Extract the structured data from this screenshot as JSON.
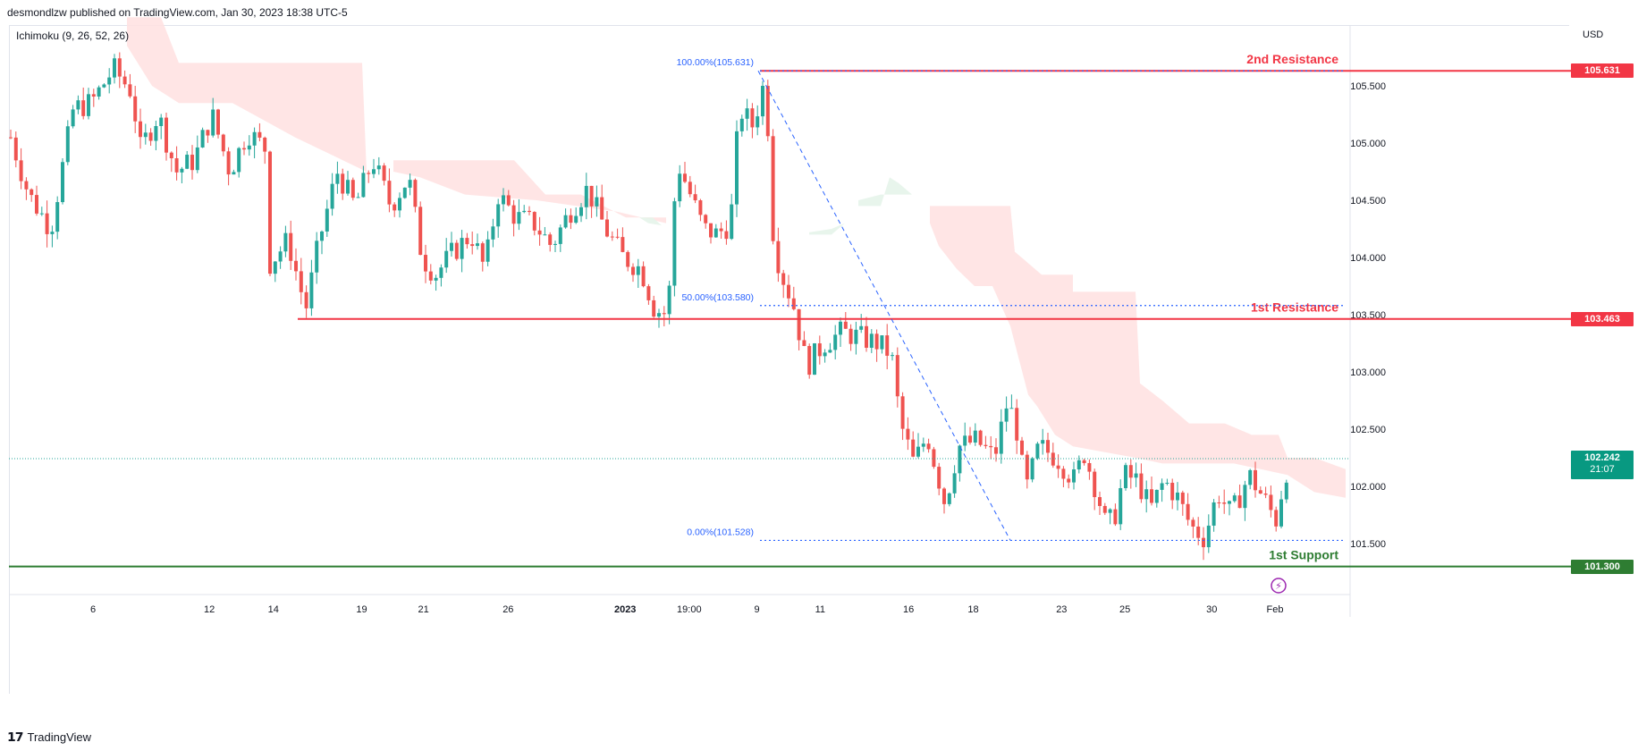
{
  "header": {
    "publisher": "desmondlzw published on TradingView.com, Jan 30, 2023 18:38 UTC-5"
  },
  "indicator": "Ichimoku (9, 26, 52, 26)",
  "currency": "USD",
  "footer": {
    "brand": "TradingView"
  },
  "colors": {
    "bull": "#26a69a",
    "bear": "#ef5350",
    "resistance": "#f23645",
    "support": "#2e7d32",
    "fib": "#2962ff",
    "cloud_bear": "#ffe0e0",
    "cloud_bull": "#e6f4ea"
  },
  "chart_data": {
    "type": "candlestick",
    "ylim": [
      101.1,
      106.15
    ],
    "y_ticks": [
      "105.500",
      "105.000",
      "104.500",
      "104.000",
      "103.500",
      "103.000",
      "102.500",
      "102.000",
      "101.500"
    ],
    "x_ticks": [
      "6",
      "12",
      "14",
      "19",
      "21",
      "26",
      "2023",
      "19:00",
      "9",
      "11",
      "16",
      "18",
      "23",
      "25",
      "30",
      "Feb"
    ],
    "levels": [
      {
        "name": "2nd Resistance",
        "value": 105.631,
        "label": "105.631",
        "kind": "resistance"
      },
      {
        "name": "1st Resistance",
        "value": 103.463,
        "label": "103.463",
        "kind": "resistance"
      },
      {
        "name": "1st Support",
        "value": 101.3,
        "label": "101.300",
        "kind": "support"
      }
    ],
    "fibonacci": [
      {
        "label": "100.00%(105.631)",
        "value": 105.631
      },
      {
        "label": "50.00%(103.580)",
        "value": 103.58
      },
      {
        "label": "0.00%(101.528)",
        "value": 101.528
      }
    ],
    "current_price": {
      "value": 102.242,
      "label": "102.242",
      "countdown": "21:07"
    },
    "trend_line": {
      "from": [
        848,
        105.631
      ],
      "to": [
        1130,
        101.528
      ]
    },
    "anchors": [
      [
        0,
        105.05
      ],
      [
        20,
        104.55
      ],
      [
        45,
        104.25
      ],
      [
        70,
        105.3
      ],
      [
        90,
        105.35
      ],
      [
        115,
        105.65
      ],
      [
        135,
        105.45
      ],
      [
        145,
        104.95
      ],
      [
        165,
        105.25
      ],
      [
        185,
        104.75
      ],
      [
        205,
        104.85
      ],
      [
        225,
        105.25
      ],
      [
        245,
        104.75
      ],
      [
        265,
        105.1
      ],
      [
        285,
        104.95
      ],
      [
        290,
        103.95
      ],
      [
        310,
        104.15
      ],
      [
        330,
        103.55
      ],
      [
        345,
        104.15
      ],
      [
        365,
        104.75
      ],
      [
        385,
        104.45
      ],
      [
        405,
        104.85
      ],
      [
        425,
        104.45
      ],
      [
        445,
        104.7
      ],
      [
        460,
        104.0
      ],
      [
        475,
        103.85
      ],
      [
        495,
        104.05
      ],
      [
        515,
        104.2
      ],
      [
        530,
        103.9
      ],
      [
        545,
        104.55
      ],
      [
        565,
        104.35
      ],
      [
        585,
        104.3
      ],
      [
        605,
        104.1
      ],
      [
        625,
        104.4
      ],
      [
        645,
        104.6
      ],
      [
        665,
        104.25
      ],
      [
        685,
        104.0
      ],
      [
        705,
        103.9
      ],
      [
        720,
        103.55
      ],
      [
        735,
        103.5
      ],
      [
        745,
        104.85
      ],
      [
        760,
        104.55
      ],
      [
        775,
        104.25
      ],
      [
        790,
        104.2
      ],
      [
        805,
        104.3
      ],
      [
        815,
        105.3
      ],
      [
        830,
        105.15
      ],
      [
        845,
        105.6
      ],
      [
        850,
        104.35
      ],
      [
        860,
        103.9
      ],
      [
        875,
        103.6
      ],
      [
        890,
        103.05
      ],
      [
        910,
        103.25
      ],
      [
        930,
        103.35
      ],
      [
        950,
        103.3
      ],
      [
        970,
        103.25
      ],
      [
        985,
        103.15
      ],
      [
        995,
        102.55
      ],
      [
        1010,
        102.2
      ],
      [
        1025,
        102.45
      ],
      [
        1045,
        101.85
      ],
      [
        1060,
        102.35
      ],
      [
        1080,
        102.4
      ],
      [
        1100,
        102.25
      ],
      [
        1115,
        102.75
      ],
      [
        1125,
        102.5
      ],
      [
        1135,
        101.95
      ],
      [
        1150,
        102.35
      ],
      [
        1170,
        102.25
      ],
      [
        1190,
        102.05
      ],
      [
        1200,
        102.3
      ],
      [
        1215,
        101.95
      ],
      [
        1225,
        101.65
      ],
      [
        1235,
        101.75
      ],
      [
        1245,
        102.1
      ],
      [
        1260,
        102.05
      ],
      [
        1275,
        101.8
      ],
      [
        1290,
        102.05
      ],
      [
        1305,
        101.9
      ],
      [
        1320,
        101.65
      ],
      [
        1335,
        101.55
      ],
      [
        1350,
        101.95
      ],
      [
        1365,
        101.75
      ],
      [
        1385,
        102.1
      ],
      [
        1405,
        101.85
      ],
      [
        1415,
        101.7
      ],
      [
        1425,
        102.1
      ],
      [
        1432,
        102.242
      ]
    ],
    "cloud_bear": [
      [
        [
          142,
          106.1
        ],
        [
          180,
          106.1
        ],
        [
          200,
          105.7
        ],
        [
          405,
          105.7
        ],
        [
          410,
          104.75
        ],
        [
          410,
          104.75
        ],
        [
          330,
          105.05
        ],
        [
          260,
          105.35
        ],
        [
          200,
          105.35
        ],
        [
          170,
          105.5
        ],
        [
          142,
          105.85
        ]
      ],
      [
        [
          440,
          104.85
        ],
        [
          575,
          104.85
        ],
        [
          610,
          104.55
        ],
        [
          650,
          104.55
        ],
        [
          700,
          104.35
        ],
        [
          745,
          104.35
        ],
        [
          745,
          104.3
        ],
        [
          690,
          104.4
        ],
        [
          600,
          104.5
        ],
        [
          520,
          104.55
        ],
        [
          470,
          104.7
        ],
        [
          440,
          104.75
        ]
      ],
      [
        [
          1040,
          104.45
        ],
        [
          1130,
          104.45
        ],
        [
          1135,
          104.05
        ],
        [
          1165,
          103.85
        ],
        [
          1200,
          103.85
        ],
        [
          1200,
          103.7
        ],
        [
          1270,
          103.7
        ],
        [
          1275,
          102.9
        ],
        [
          1300,
          102.75
        ],
        [
          1330,
          102.55
        ],
        [
          1370,
          102.55
        ],
        [
          1400,
          102.45
        ],
        [
          1430,
          102.45
        ],
        [
          1440,
          102.25
        ],
        [
          1470,
          102.25
        ],
        [
          1505,
          102.15
        ],
        [
          1505,
          101.9
        ],
        [
          1470,
          101.95
        ],
        [
          1440,
          102.1
        ],
        [
          1410,
          102.15
        ],
        [
          1380,
          102.2
        ],
        [
          1330,
          102.2
        ],
        [
          1300,
          102.2
        ],
        [
          1270,
          102.25
        ],
        [
          1200,
          102.35
        ],
        [
          1180,
          102.45
        ],
        [
          1160,
          102.7
        ],
        [
          1150,
          102.8
        ],
        [
          1140,
          103.1
        ],
        [
          1130,
          103.4
        ],
        [
          1110,
          103.75
        ],
        [
          1090,
          103.75
        ],
        [
          1070,
          103.9
        ],
        [
          1050,
          104.1
        ],
        [
          1040,
          104.3
        ]
      ]
    ],
    "cloud_bull": [
      [
        [
          960,
          104.45
        ],
        [
          985,
          104.45
        ],
        [
          995,
          104.7
        ],
        [
          1005,
          104.65
        ],
        [
          1020,
          104.55
        ],
        [
          1005,
          104.55
        ],
        [
          985,
          104.55
        ],
        [
          960,
          104.5
        ]
      ],
      [
        [
          905,
          104.2
        ],
        [
          930,
          104.2
        ],
        [
          945,
          104.3
        ],
        [
          930,
          104.25
        ],
        [
          905,
          104.22
        ]
      ],
      [
        [
          715,
          104.35
        ],
        [
          730,
          104.35
        ],
        [
          740,
          104.28
        ],
        [
          725,
          104.3
        ]
      ]
    ],
    "highlighted_dates_note": ""
  }
}
